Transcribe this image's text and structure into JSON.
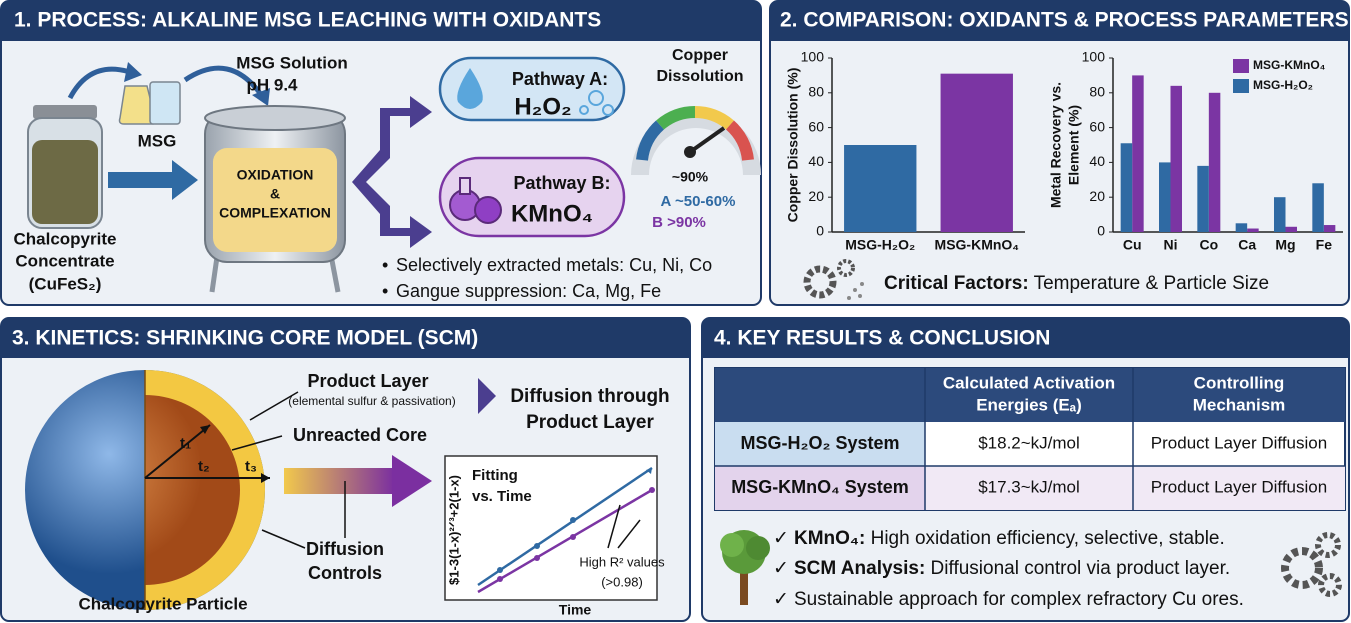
{
  "panel1": {
    "title": "1. PROCESS: ALKALINE MSG LEACHING WITH OXIDANTS",
    "solution": [
      "MSG Solution",
      "pH 9.4"
    ],
    "reagent": "MSG",
    "tank": [
      "OXIDATION",
      "&",
      "COMPLEXATION"
    ],
    "feed": [
      "Chalcopyrite",
      "Concentrate",
      "(CuFeS₂)"
    ],
    "pathway_a": [
      "Pathway A:",
      "H₂O₂"
    ],
    "pathway_b": [
      "Pathway B:",
      "KMnO₄"
    ],
    "gauge": {
      "title": [
        "Copper",
        "Dissolution"
      ],
      "reading": "~90%",
      "a": "A ~50-60%",
      "b": "B >90%"
    },
    "bullets": [
      "Selectively extracted metals: Cu, Ni, Co",
      "Gangue suppression: Ca, Mg, Fe"
    ]
  },
  "panel2": {
    "title": "2. COMPARISON: OXIDANTS & PROCESS PARAMETERS",
    "factors": {
      "label": "Critical Factors:",
      "text": " Temperature & Particle Size"
    }
  },
  "chart_data": [
    {
      "type": "bar",
      "categories": [
        "MSG-H₂O₂",
        "MSG-KMnO₄"
      ],
      "values": [
        50,
        91
      ],
      "colors": [
        "#2f6aa3",
        "#7b35a3"
      ],
      "ylabel": [
        "Copper Dissolution (%)"
      ],
      "ylim": [
        0,
        100
      ],
      "yticks": [
        0,
        20,
        40,
        60,
        80,
        100
      ]
    },
    {
      "type": "bar",
      "categories": [
        "Cu",
        "Ni",
        "Co",
        "Ca",
        "Mg",
        "Fe"
      ],
      "series": [
        {
          "name": "MSG-KMnO₄",
          "color": "#7b35a3",
          "values": [
            90,
            84,
            80,
            2,
            3,
            4
          ]
        },
        {
          "name": "MSG-H₂O₂",
          "color": "#2f6aa3",
          "values": [
            51,
            40,
            38,
            5,
            20,
            28
          ]
        }
      ],
      "ylabel": [
        "Metal Recovery vs.",
        "Element (%)"
      ],
      "ylim": [
        0,
        100
      ],
      "yticks": [
        0,
        20,
        40,
        60,
        80,
        100
      ],
      "legend": "upper right"
    }
  ],
  "panel3": {
    "title": "3. KINETICS: SHRINKING CORE MODEL (SCM)",
    "product_layer": [
      "Product Layer",
      "(elemental sulfur & passivation)"
    ],
    "core": "Unreacted Core",
    "times": [
      "t₁",
      "t₂",
      "t₃"
    ],
    "diffusion": [
      "Diffusion",
      "Controls"
    ],
    "particle": "Chalcopyrite Particle",
    "arrow_label": [
      "Diffusion through",
      "Product Layer"
    ],
    "fit": {
      "title": [
        "Fitting",
        "vs. Time"
      ],
      "note": [
        "High R² values",
        "(>0.98)"
      ],
      "ylabel": "$1-3(1-x)²ᐟ³+2(1-x)",
      "xlabel": "Time"
    }
  },
  "panel4": {
    "title": "4. KEY RESULTS & CONCLUSION",
    "table": {
      "header": [
        [
          "Calculated Activation",
          "Energies (Eₐ)"
        ],
        [
          "Controlling",
          "Mechanism"
        ]
      ],
      "rows": [
        [
          "MSG-H₂O₂ System",
          "$18.2~kJ/mol",
          "Product Layer Diffusion"
        ],
        [
          "MSG-KMnO₄ System",
          "$17.3~kJ/mol",
          "Product Layer Diffusion"
        ]
      ]
    },
    "conclusions": [
      {
        "label": "KMnO₄:",
        "text": " High oxidation efficiency, selective, stable."
      },
      {
        "label": "SCM Analysis:",
        "text": " Diffusional control via product layer."
      },
      {
        "text": "Sustainable approach for complex refractory Cu ores."
      }
    ]
  }
}
